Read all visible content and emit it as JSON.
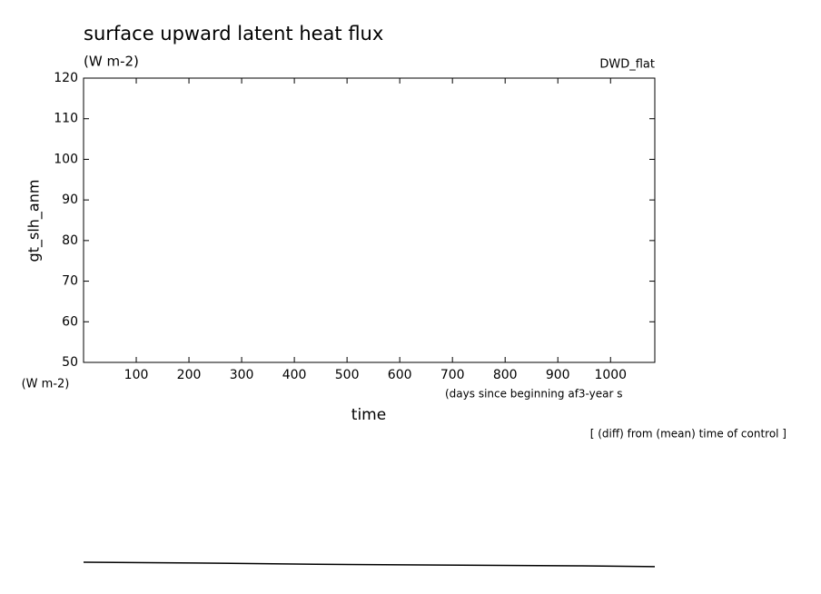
{
  "chart_data": {
    "type": "line",
    "title": "surface upward latent heat flux",
    "subtitle": "(W m-2)",
    "annotation": "DWD_flat",
    "ylabel": "gt_slh_anm",
    "y_unit": "(W m-2)",
    "xlabel": "time",
    "x_unit": "(days since beginning af3-year s",
    "note": "[ (diff) from (mean) time of control ]",
    "x": [
      0,
      212,
      440,
      678,
      945,
      1084
    ],
    "values": [
      0.8,
      0.6,
      0.3,
      0.1,
      -0.1,
      -0.3
    ],
    "color": "#000000",
    "xlim": [
      0,
      1084
    ],
    "xticks": [
      100,
      200,
      300,
      400,
      500,
      600,
      700,
      800,
      900,
      1000
    ],
    "ylim": [
      50,
      120
    ],
    "yticks": [
      50,
      60,
      70,
      80,
      90,
      100,
      110,
      120
    ]
  }
}
